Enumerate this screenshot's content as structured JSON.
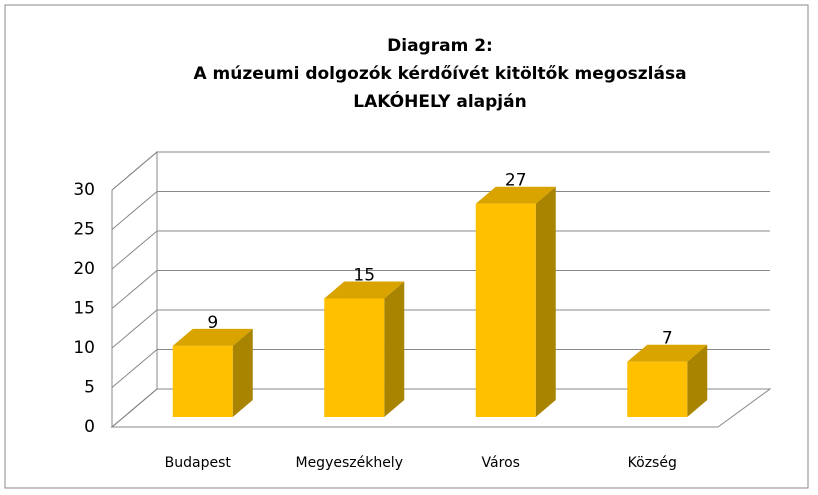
{
  "chart_data": {
    "type": "bar3d",
    "title": [
      "Diagram 2:",
      "A múzeumi dolgozók kérdőívét kitöltők megoszlása",
      "LAKÓHELY alapján"
    ],
    "categories": [
      "Budapest",
      "Megyeszékhely",
      "Város",
      "Község"
    ],
    "values": [
      9,
      15,
      27,
      7
    ],
    "color": "#ffc000",
    "ylim": [
      0,
      30
    ],
    "yticks": [
      0,
      5,
      10,
      15,
      20,
      25,
      30
    ],
    "grid": true
  }
}
